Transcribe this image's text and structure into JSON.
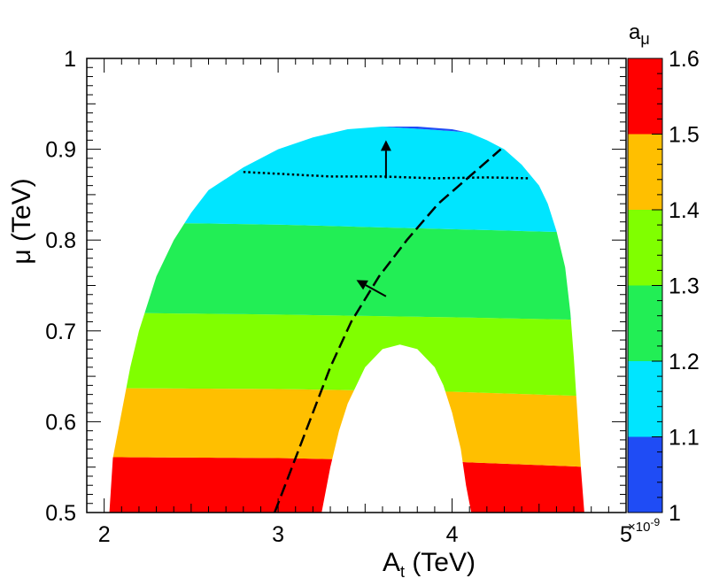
{
  "chart_data": {
    "type": "heatmap",
    "xlabel": {
      "main": "A",
      "sub": "t",
      "unit": " (TeV)"
    },
    "ylabel": {
      "main": "μ",
      "unit": " (TeV)"
    },
    "xlim": [
      1.9,
      5.0
    ],
    "ylim": [
      0.5,
      1.0
    ],
    "x_ticks": [
      "2",
      "3",
      "4",
      "5"
    ],
    "y_ticks": [
      "0.5",
      "0.6",
      "0.7",
      "0.8",
      "0.9",
      "1"
    ],
    "colorbar": {
      "title_main": "a",
      "title_sub": "μ",
      "range": [
        1.0,
        1.6
      ],
      "multiplier": "×10",
      "multiplier_exp": "-9",
      "tick_labels": [
        "1",
        "1.1",
        "1.2",
        "1.3",
        "1.4",
        "1.5",
        "1.6"
      ],
      "bins": [
        {
          "from": 1.0,
          "to": 1.1,
          "color": "#1f4cf5"
        },
        {
          "from": 1.1,
          "to": 1.2,
          "color": "#00e5ff"
        },
        {
          "from": 1.2,
          "to": 1.3,
          "color": "#22ee55"
        },
        {
          "from": 1.3,
          "to": 1.4,
          "color": "#80ff00"
        },
        {
          "from": 1.4,
          "to": 1.5,
          "color": "#ffbf00"
        },
        {
          "from": 1.5,
          "to": 1.6,
          "color": "#ff0000"
        }
      ]
    },
    "region_outer": [
      [
        2.03,
        0.5
      ],
      [
        2.05,
        0.56
      ],
      [
        2.1,
        0.61
      ],
      [
        2.15,
        0.66
      ],
      [
        2.2,
        0.7
      ],
      [
        2.3,
        0.76
      ],
      [
        2.4,
        0.8
      ],
      [
        2.5,
        0.83
      ],
      [
        2.6,
        0.855
      ],
      [
        2.8,
        0.88
      ],
      [
        3.0,
        0.9
      ],
      [
        3.2,
        0.913
      ],
      [
        3.4,
        0.922
      ],
      [
        3.6,
        0.925
      ],
      [
        3.8,
        0.925
      ],
      [
        4.0,
        0.922
      ],
      [
        4.1,
        0.918
      ],
      [
        4.2,
        0.91
      ],
      [
        4.3,
        0.9
      ],
      [
        4.4,
        0.883
      ],
      [
        4.5,
        0.86
      ],
      [
        4.55,
        0.84
      ],
      [
        4.6,
        0.81
      ],
      [
        4.65,
        0.77
      ],
      [
        4.68,
        0.72
      ],
      [
        4.7,
        0.67
      ],
      [
        4.72,
        0.61
      ],
      [
        4.74,
        0.55
      ],
      [
        4.76,
        0.5
      ]
    ],
    "region_hole": [
      [
        3.25,
        0.5
      ],
      [
        3.3,
        0.55
      ],
      [
        3.35,
        0.59
      ],
      [
        3.4,
        0.62
      ],
      [
        3.5,
        0.66
      ],
      [
        3.6,
        0.68
      ],
      [
        3.7,
        0.685
      ],
      [
        3.8,
        0.68
      ],
      [
        3.9,
        0.66
      ],
      [
        3.95,
        0.64
      ],
      [
        4.0,
        0.61
      ],
      [
        4.05,
        0.57
      ],
      [
        4.08,
        0.53
      ],
      [
        4.11,
        0.5
      ]
    ],
    "band_boundaries": [
      {
        "value": 1.1,
        "points": [
          [
            3.3,
            0.929
          ],
          [
            3.6,
            0.925
          ],
          [
            4.0,
            0.92
          ],
          [
            4.2,
            0.917
          ]
        ]
      },
      {
        "value": 1.2,
        "points": [
          [
            2.0,
            0.82
          ],
          [
            3.0,
            0.817
          ],
          [
            4.0,
            0.812
          ],
          [
            4.8,
            0.808
          ]
        ]
      },
      {
        "value": 1.3,
        "points": [
          [
            2.0,
            0.72
          ],
          [
            3.0,
            0.718
          ],
          [
            4.0,
            0.715
          ],
          [
            4.8,
            0.712
          ]
        ]
      },
      {
        "value": 1.4,
        "points": [
          [
            2.0,
            0.637
          ],
          [
            3.0,
            0.636
          ],
          [
            4.0,
            0.633
          ],
          [
            4.8,
            0.628
          ]
        ]
      },
      {
        "value": 1.5,
        "points": [
          [
            2.0,
            0.561
          ],
          [
            3.0,
            0.56
          ],
          [
            4.0,
            0.556
          ],
          [
            4.8,
            0.55
          ]
        ]
      }
    ],
    "dotted_line": [
      [
        2.8,
        0.875
      ],
      [
        3.0,
        0.873
      ],
      [
        3.3,
        0.87
      ],
      [
        3.6,
        0.87
      ],
      [
        3.9,
        0.868
      ],
      [
        4.2,
        0.869
      ],
      [
        4.45,
        0.868
      ]
    ],
    "dashed_line": [
      [
        2.98,
        0.5
      ],
      [
        3.08,
        0.55
      ],
      [
        3.18,
        0.6
      ],
      [
        3.3,
        0.66
      ],
      [
        3.42,
        0.71
      ],
      [
        3.58,
        0.76
      ],
      [
        3.74,
        0.8
      ],
      [
        3.92,
        0.84
      ],
      [
        4.1,
        0.87
      ],
      [
        4.28,
        0.9
      ]
    ],
    "arrows": [
      {
        "from": [
          3.62,
          0.868
        ],
        "to": [
          3.62,
          0.91
        ]
      },
      {
        "from": [
          3.62,
          0.738
        ],
        "to": [
          3.45,
          0.756
        ]
      }
    ]
  }
}
